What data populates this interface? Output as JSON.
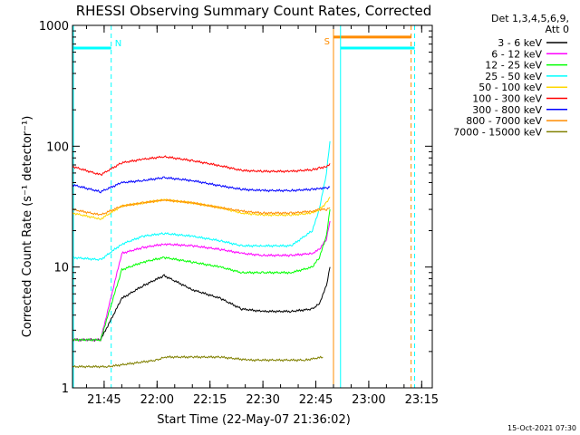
{
  "chart_data": {
    "type": "line",
    "title": "RHESSI Observing Summary Count Rates, Corrected",
    "xlabel": "Start Time (22-May-07 21:36:02)",
    "ylabel": "Corrected Count Rate (s⁻¹ detector⁻¹)",
    "yscale": "log",
    "ylim": [
      1,
      1000
    ],
    "xlim": [
      "21:36:02",
      "23:18:00"
    ],
    "x_ticks": [
      "21:45",
      "22:00",
      "22:15",
      "22:30",
      "22:45",
      "23:00",
      "23:15"
    ],
    "y_ticks": [
      "1",
      "10",
      "100",
      "1000"
    ],
    "legend_header": [
      "Det 1,3,4,5,6,9,",
      "Att 0"
    ],
    "legend_position": "right",
    "series": [
      {
        "name": "3 - 6 keV",
        "color": "#000000",
        "x": [
          "21:36",
          "21:44",
          "21:50",
          "21:56",
          "22:02",
          "22:10",
          "22:18",
          "22:24",
          "22:30",
          "22:38",
          "22:44",
          "22:46",
          "22:48",
          "22:49"
        ],
        "values": [
          2.5,
          2.5,
          5.5,
          7,
          8.5,
          6.5,
          5.5,
          4.5,
          4.3,
          4.3,
          4.5,
          5,
          7,
          10
        ]
      },
      {
        "name": "6 - 12 keV",
        "color": "#ff00ff",
        "x": [
          "21:36",
          "21:44",
          "21:50",
          "21:56",
          "22:02",
          "22:10",
          "22:18",
          "22:24",
          "22:30",
          "22:38",
          "22:44",
          "22:46",
          "22:48",
          "22:49"
        ],
        "values": [
          2.5,
          2.5,
          13,
          14.5,
          15.5,
          15,
          14,
          13,
          12.5,
          12.5,
          13,
          14,
          17,
          24
        ]
      },
      {
        "name": "12 - 25 keV",
        "color": "#00ff00",
        "x": [
          "21:36",
          "21:44",
          "21:50",
          "21:56",
          "22:02",
          "22:10",
          "22:18",
          "22:24",
          "22:30",
          "22:38",
          "22:44",
          "22:46",
          "22:48",
          "22:49"
        ],
        "values": [
          2.5,
          2.5,
          9.5,
          11,
          12,
          11,
          10,
          9,
          9,
          9,
          10,
          12,
          18,
          30
        ]
      },
      {
        "name": "25 - 50 keV",
        "color": "#00ffff",
        "x": [
          "21:36",
          "21:44",
          "21:50",
          "21:56",
          "22:02",
          "22:10",
          "22:18",
          "22:24",
          "22:30",
          "22:38",
          "22:44",
          "22:46",
          "22:48",
          "22:49"
        ],
        "values": [
          12,
          11.5,
          15.5,
          18,
          19,
          18,
          16.5,
          15,
          15,
          15,
          20,
          30,
          60,
          110
        ]
      },
      {
        "name": "50 - 100 keV",
        "color": "#ffd700",
        "x": [
          "21:36",
          "21:44",
          "21:50",
          "21:56",
          "22:02",
          "22:10",
          "22:18",
          "22:24",
          "22:30",
          "22:38",
          "22:44",
          "22:46",
          "22:48",
          "22:49"
        ],
        "values": [
          28,
          25,
          32,
          34,
          36,
          34,
          31,
          28,
          27,
          27,
          28,
          30,
          34,
          38
        ]
      },
      {
        "name": "100 - 300 keV",
        "color": "#ff0000",
        "x": [
          "21:36",
          "21:44",
          "21:50",
          "21:56",
          "22:02",
          "22:10",
          "22:18",
          "22:24",
          "22:30",
          "22:38",
          "22:44",
          "22:46",
          "22:48",
          "22:49"
        ],
        "values": [
          68,
          58,
          73,
          78,
          82,
          76,
          69,
          63,
          62,
          62,
          64,
          66,
          68,
          72
        ]
      },
      {
        "name": "300 - 800 keV",
        "color": "#0000ff",
        "x": [
          "21:36",
          "21:44",
          "21:50",
          "21:56",
          "22:02",
          "22:10",
          "22:18",
          "22:24",
          "22:30",
          "22:38",
          "22:44",
          "22:46",
          "22:48",
          "22:49"
        ],
        "values": [
          48,
          42,
          50,
          52,
          55,
          52,
          47,
          44,
          43,
          43,
          44,
          45,
          45,
          46
        ]
      },
      {
        "name": "800 - 7000 keV",
        "color": "#ff8c00",
        "x": [
          "21:36",
          "21:44",
          "21:50",
          "21:56",
          "22:02",
          "22:10",
          "22:18",
          "22:24",
          "22:30",
          "22:38",
          "22:44",
          "22:46",
          "22:48",
          "22:49"
        ],
        "values": [
          30,
          27,
          32,
          34,
          36,
          34,
          31,
          29,
          28,
          28,
          29,
          30,
          30,
          31
        ]
      },
      {
        "name": "7000 - 15000 keV",
        "color": "#808000",
        "x": [
          "21:36",
          "21:46",
          "22:00",
          "22:02",
          "22:10",
          "22:18",
          "22:26",
          "22:42",
          "22:47"
        ],
        "values": [
          1.5,
          1.5,
          1.7,
          1.8,
          1.8,
          1.8,
          1.7,
          1.7,
          1.8
        ]
      }
    ],
    "annotations": [
      {
        "text": "N",
        "time": "21:47",
        "color": "#00ffff"
      },
      {
        "text": "S",
        "time": "22:50",
        "color": "#ff8c00"
      }
    ],
    "timestamp": "15-Oct-2021 07:30"
  }
}
